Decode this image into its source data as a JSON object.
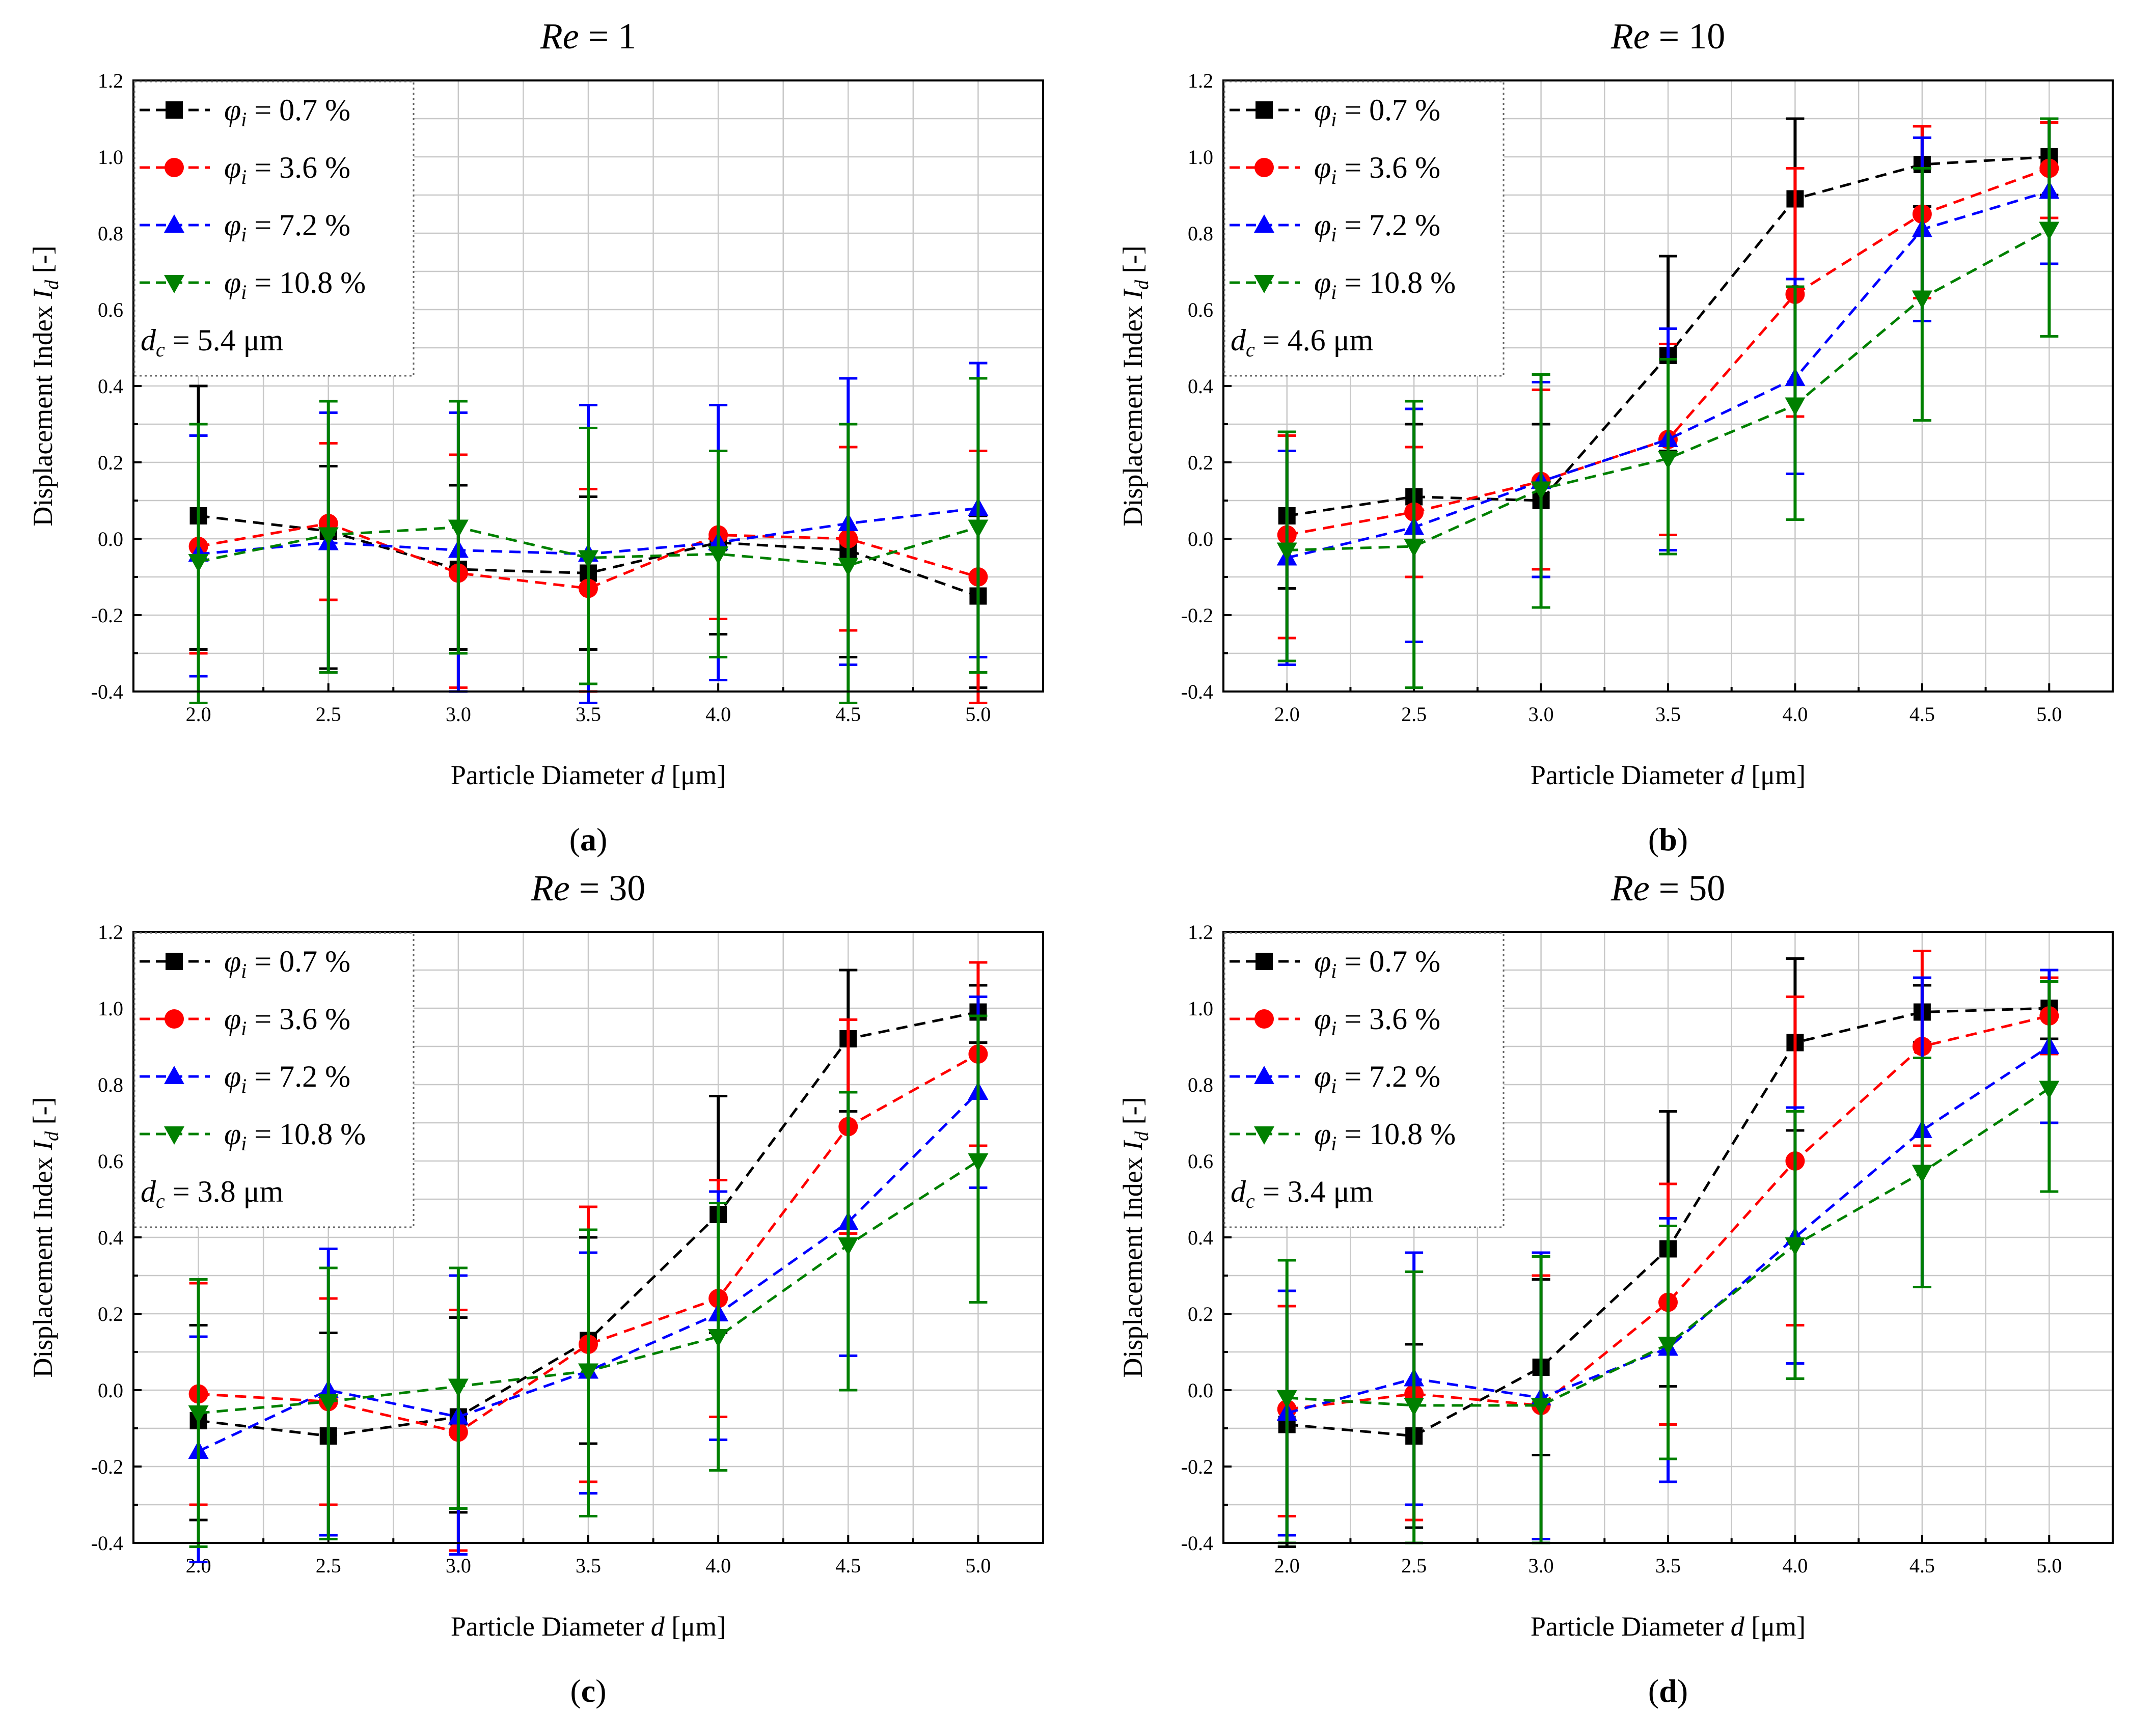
{
  "figure": {
    "panel_labels": [
      "(a)",
      "(b)",
      "(c)",
      "(d)"
    ],
    "phi_symbol": "φ",
    "phi_subscript": "i",
    "dc_symbol": "d",
    "dc_subscript": "c",
    "colors": {
      "black": "#000000",
      "red": "#ff0000",
      "blue": "#0000ff",
      "green": "#008000"
    },
    "markers": [
      "square",
      "circle",
      "triangle-up",
      "triangle-down"
    ]
  },
  "chart_data": [
    {
      "type": "line",
      "title": "Re = 1",
      "title_parts": {
        "italic": "Re",
        "rest": " = 1"
      },
      "xlabel": "Particle Diameter d [μm]",
      "xlabel_parts": {
        "pre": "Particle Diameter ",
        "italic": "d",
        "post": " [μm]"
      },
      "ylabel": "Displacement Index I_d [-]",
      "ylabel_parts": {
        "pre": "Displacement Index ",
        "italic": "I",
        "sub": "d",
        "post": " [-]"
      },
      "xlim": [
        1.75,
        5.25
      ],
      "ylim": [
        -0.4,
        1.2
      ],
      "xticks": [
        "2.0",
        "2.5",
        "3.0",
        "3.5",
        "4.0",
        "4.5",
        "5.0"
      ],
      "yticks": [
        "-0.4",
        "-0.2",
        "0.0",
        "0.2",
        "0.4",
        "0.6",
        "0.8",
        "1.0",
        "1.2"
      ],
      "grid": true,
      "legend_position": "top-left",
      "annotation": {
        "label": "d_c = 5.4 μm",
        "value": "= 5.4 μm"
      },
      "x": [
        2.0,
        2.5,
        3.0,
        3.5,
        4.0,
        4.5,
        5.0
      ],
      "series": [
        {
          "name": "φ_i = 0.7 %",
          "label": "= 0.7 %",
          "color": "#000000",
          "marker": "square",
          "values": [
            0.06,
            0.02,
            -0.08,
            -0.09,
            -0.01,
            -0.03,
            -0.15
          ],
          "err_hi": [
            0.4,
            0.19,
            0.14,
            0.11,
            0.23,
            0.24,
            0.06
          ],
          "err_lo": [
            -0.29,
            -0.34,
            -0.29,
            -0.29,
            -0.25,
            -0.31,
            -0.39
          ]
        },
        {
          "name": "φ_i = 3.6 %",
          "label": "= 3.6 %",
          "color": "#ff0000",
          "marker": "circle",
          "values": [
            -0.02,
            0.04,
            -0.09,
            -0.13,
            0.01,
            0.0,
            -0.1
          ],
          "err_hi": [
            0.3,
            0.25,
            0.22,
            0.13,
            0.23,
            0.24,
            0.23
          ],
          "err_lo": [
            -0.3,
            -0.16,
            -0.39,
            -0.4,
            -0.21,
            -0.24,
            -0.43
          ]
        },
        {
          "name": "φ_i = 7.2 %",
          "label": "= 7.2 %",
          "color": "#0000ff",
          "marker": "triangle-up",
          "values": [
            -0.04,
            -0.01,
            -0.03,
            -0.04,
            -0.01,
            0.04,
            0.08
          ],
          "err_hi": [
            0.27,
            0.33,
            0.33,
            0.35,
            0.35,
            0.42,
            0.46
          ],
          "err_lo": [
            -0.36,
            -0.35,
            -0.4,
            -0.43,
            -0.37,
            -0.33,
            -0.31
          ]
        },
        {
          "name": "φ_i = 10.8 %",
          "label": "= 10.8 %",
          "color": "#008000",
          "marker": "triangle-down",
          "values": [
            -0.06,
            0.01,
            0.03,
            -0.05,
            -0.04,
            -0.07,
            0.03
          ],
          "err_hi": [
            0.3,
            0.36,
            0.36,
            0.29,
            0.23,
            0.3,
            0.42
          ],
          "err_lo": [
            -0.43,
            -0.35,
            -0.3,
            -0.38,
            -0.31,
            -0.43,
            -0.35
          ]
        }
      ]
    },
    {
      "type": "line",
      "title": "Re = 10",
      "title_parts": {
        "italic": "Re",
        "rest": " = 10"
      },
      "xlabel": "Particle Diameter d [μm]",
      "xlabel_parts": {
        "pre": "Particle Diameter ",
        "italic": "d",
        "post": " [μm]"
      },
      "ylabel": "Displacement Index I_d [-]",
      "ylabel_parts": {
        "pre": "Displacement Index ",
        "italic": "I",
        "sub": "d",
        "post": " [-]"
      },
      "xlim": [
        1.75,
        5.25
      ],
      "ylim": [
        -0.4,
        1.2
      ],
      "xticks": [
        "2.0",
        "2.5",
        "3.0",
        "3.5",
        "4.0",
        "4.5",
        "5.0"
      ],
      "yticks": [
        "-0.4",
        "-0.2",
        "0.0",
        "0.2",
        "0.4",
        "0.6",
        "0.8",
        "1.0",
        "1.2"
      ],
      "grid": true,
      "legend_position": "top-left",
      "annotation": {
        "label": "d_c = 4.6 μm",
        "value": "= 4.6 μm"
      },
      "x": [
        2.0,
        2.5,
        3.0,
        3.5,
        4.0,
        4.5,
        5.0
      ],
      "series": [
        {
          "name": "φ_i = 0.7 %",
          "label": "= 0.7 %",
          "color": "#000000",
          "marker": "square",
          "values": [
            0.06,
            0.11,
            0.1,
            0.48,
            0.89,
            0.98,
            1.0
          ],
          "err_hi": [
            0.27,
            0.3,
            0.3,
            0.74,
            1.1,
            1.08,
            1.1
          ],
          "err_lo": [
            -0.13,
            -0.1,
            -0.1,
            0.23,
            0.68,
            0.87,
            0.9
          ]
        },
        {
          "name": "φ_i = 3.6 %",
          "label": "= 3.6 %",
          "color": "#ff0000",
          "marker": "circle",
          "values": [
            0.01,
            0.07,
            0.15,
            0.26,
            0.64,
            0.85,
            0.97
          ],
          "err_hi": [
            0.27,
            0.24,
            0.39,
            0.51,
            0.97,
            1.08,
            1.09
          ],
          "err_lo": [
            -0.26,
            -0.1,
            -0.08,
            0.01,
            0.32,
            0.63,
            0.84
          ]
        },
        {
          "name": "φ_i = 7.2 %",
          "label": "= 7.2 %",
          "color": "#0000ff",
          "marker": "triangle-up",
          "values": [
            -0.05,
            0.03,
            0.15,
            0.26,
            0.42,
            0.81,
            0.91
          ],
          "err_hi": [
            0.23,
            0.34,
            0.41,
            0.55,
            0.68,
            1.05,
            1.1
          ],
          "err_lo": [
            -0.33,
            -0.27,
            -0.1,
            -0.03,
            0.17,
            0.57,
            0.72
          ]
        },
        {
          "name": "φ_i = 10.8 %",
          "label": "= 10.8 %",
          "color": "#008000",
          "marker": "triangle-down",
          "values": [
            -0.03,
            -0.02,
            0.13,
            0.21,
            0.35,
            0.63,
            0.81
          ],
          "err_hi": [
            0.28,
            0.36,
            0.43,
            0.47,
            0.66,
            0.97,
            1.1
          ],
          "err_lo": [
            -0.32,
            -0.39,
            -0.18,
            -0.04,
            0.05,
            0.31,
            0.53
          ]
        }
      ]
    },
    {
      "type": "line",
      "title": "Re = 30",
      "title_parts": {
        "italic": "Re",
        "rest": " = 30"
      },
      "xlabel": "Particle Diameter d [μm]",
      "xlabel_parts": {
        "pre": "Particle Diameter ",
        "italic": "d",
        "post": " [μm]"
      },
      "ylabel": "Displacement Index I_d [-]",
      "ylabel_parts": {
        "pre": "Displacement Index ",
        "italic": "I",
        "sub": "d",
        "post": " [-]"
      },
      "xlim": [
        1.75,
        5.25
      ],
      "ylim": [
        -0.4,
        1.2
      ],
      "xticks": [
        "2.0",
        "2.5",
        "3.0",
        "3.5",
        "4.0",
        "4.5",
        "5.0"
      ],
      "yticks": [
        "-0.4",
        "-0.2",
        "0.0",
        "0.2",
        "0.4",
        "0.6",
        "0.8",
        "1.0",
        "1.2"
      ],
      "grid": true,
      "legend_position": "top-left",
      "annotation": {
        "label": "d_c = 3.8 μm",
        "value": "= 3.8 μm"
      },
      "x": [
        2.0,
        2.5,
        3.0,
        3.5,
        4.0,
        4.5,
        5.0
      ],
      "series": [
        {
          "name": "φ_i = 0.7 %",
          "label": "= 0.7 %",
          "color": "#000000",
          "marker": "square",
          "values": [
            -0.08,
            -0.12,
            -0.07,
            0.13,
            0.46,
            0.92,
            0.99
          ],
          "err_hi": [
            0.17,
            0.15,
            0.19,
            0.4,
            0.77,
            1.1,
            1.06
          ],
          "err_lo": [
            -0.34,
            -0.38,
            -0.32,
            -0.14,
            0.15,
            0.73,
            0.91
          ]
        },
        {
          "name": "φ_i = 3.6 %",
          "label": "= 3.6 %",
          "color": "#ff0000",
          "marker": "circle",
          "values": [
            -0.01,
            -0.03,
            -0.11,
            0.12,
            0.24,
            0.69,
            0.88
          ],
          "err_hi": [
            0.28,
            0.24,
            0.21,
            0.48,
            0.55,
            0.97,
            1.12
          ],
          "err_lo": [
            -0.3,
            -0.3,
            -0.42,
            -0.24,
            -0.07,
            0.41,
            0.64
          ]
        },
        {
          "name": "φ_i = 7.2 %",
          "label": "= 7.2 %",
          "color": "#0000ff",
          "marker": "triangle-up",
          "values": [
            -0.16,
            0.0,
            -0.07,
            0.05,
            0.2,
            0.44,
            0.78
          ],
          "err_hi": [
            0.14,
            0.37,
            0.3,
            0.36,
            0.52,
            0.78,
            1.03
          ],
          "err_lo": [
            -0.45,
            -0.38,
            -0.43,
            -0.27,
            -0.13,
            0.09,
            0.53
          ]
        },
        {
          "name": "φ_i = 10.8 %",
          "label": "= 10.8 %",
          "color": "#008000",
          "marker": "triangle-down",
          "values": [
            -0.06,
            -0.03,
            0.01,
            0.05,
            0.14,
            0.38,
            0.6
          ],
          "err_hi": [
            0.29,
            0.32,
            0.32,
            0.42,
            0.49,
            0.78,
            0.98
          ],
          "err_lo": [
            -0.41,
            -0.39,
            -0.31,
            -0.33,
            -0.21,
            0.0,
            0.23
          ]
        }
      ]
    },
    {
      "type": "line",
      "title": "Re = 50",
      "title_parts": {
        "italic": "Re",
        "rest": " = 50"
      },
      "xlabel": "Particle Diameter d [μm]",
      "xlabel_parts": {
        "pre": "Particle Diameter ",
        "italic": "d",
        "post": " [μm]"
      },
      "ylabel": "Displacement Index I_d [-]",
      "ylabel_parts": {
        "pre": "Displacement Index ",
        "italic": "I",
        "sub": "d",
        "post": " [-]"
      },
      "xlim": [
        1.75,
        5.25
      ],
      "ylim": [
        -0.4,
        1.2
      ],
      "xticks": [
        "2.0",
        "2.5",
        "3.0",
        "3.5",
        "4.0",
        "4.5",
        "5.0"
      ],
      "yticks": [
        "-0.4",
        "-0.2",
        "0.0",
        "0.2",
        "0.4",
        "0.6",
        "0.8",
        "1.0",
        "1.2"
      ],
      "grid": true,
      "legend_position": "top-left",
      "annotation": {
        "label": "d_c = 3.4 μm",
        "value": "= 3.4 μm"
      },
      "x": [
        2.0,
        2.5,
        3.0,
        3.5,
        4.0,
        4.5,
        5.0
      ],
      "series": [
        {
          "name": "φ_i = 0.7 %",
          "label": "= 0.7 %",
          "color": "#000000",
          "marker": "square",
          "values": [
            -0.09,
            -0.12,
            0.06,
            0.37,
            0.91,
            0.99,
            1.0
          ],
          "err_hi": [
            0.22,
            0.12,
            0.29,
            0.73,
            1.13,
            1.06,
            1.08
          ],
          "err_lo": [
            -0.41,
            -0.36,
            -0.17,
            0.01,
            0.68,
            0.91,
            0.92
          ]
        },
        {
          "name": "φ_i = 3.6 %",
          "label": "= 3.6 %",
          "color": "#ff0000",
          "marker": "circle",
          "values": [
            -0.05,
            -0.01,
            -0.04,
            0.23,
            0.6,
            0.9,
            0.98
          ],
          "err_hi": [
            0.22,
            0.31,
            0.3,
            0.54,
            1.03,
            1.15,
            1.08
          ],
          "err_lo": [
            -0.33,
            -0.34,
            -0.39,
            -0.09,
            0.17,
            0.64,
            0.88
          ]
        },
        {
          "name": "φ_i = 7.2 %",
          "label": "= 7.2 %",
          "color": "#0000ff",
          "marker": "triangle-up",
          "values": [
            -0.06,
            0.03,
            -0.02,
            0.11,
            0.4,
            0.68,
            0.9
          ],
          "err_hi": [
            0.26,
            0.36,
            0.36,
            0.45,
            0.74,
            1.08,
            1.1
          ],
          "err_lo": [
            -0.38,
            -0.3,
            -0.39,
            -0.24,
            0.07,
            0.27,
            0.7
          ]
        },
        {
          "name": "φ_i = 10.8 %",
          "label": "= 10.8 %",
          "color": "#008000",
          "marker": "triangle-down",
          "values": [
            -0.02,
            -0.04,
            -0.04,
            0.12,
            0.38,
            0.57,
            0.79
          ],
          "err_hi": [
            0.34,
            0.31,
            0.35,
            0.43,
            0.73,
            0.87,
            1.07
          ],
          "err_lo": [
            -0.4,
            -0.4,
            -0.4,
            -0.18,
            0.03,
            0.27,
            0.52
          ]
        }
      ]
    }
  ]
}
